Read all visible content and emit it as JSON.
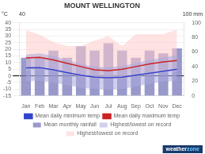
{
  "chart_data": {
    "type": "combo",
    "title": "MOUNT WELLINGTON",
    "categories": [
      "Jan",
      "Feb",
      "Mar",
      "Apr",
      "May",
      "Jun",
      "Jul",
      "Aug",
      "Sep",
      "Oct",
      "Nov",
      "Dec"
    ],
    "series": [
      {
        "name": "Mean daily minimum temp",
        "type": "line",
        "color": "#3344cc",
        "values": [
          6.0,
          6.2,
          4.5,
          2.5,
          0.5,
          -1.0,
          -1.5,
          -1.0,
          0.5,
          2.0,
          3.5,
          5.0
        ]
      },
      {
        "name": "Mean daily maximum temp",
        "type": "line",
        "color": "#cc2222",
        "values": [
          13.5,
          14.0,
          12.0,
          9.5,
          7.0,
          4.5,
          4.0,
          5.0,
          7.0,
          9.0,
          10.5,
          11.5
        ]
      },
      {
        "name": "Mean monthly rainfall",
        "type": "bar",
        "axis": "y2",
        "color": "#7777bb",
        "values": [
          52,
          52,
          62,
          52,
          68,
          62,
          72,
          62,
          52,
          62,
          58,
          65
        ]
      },
      {
        "name": "Highest/lowest on record",
        "type": "band",
        "color": "#aaaadd",
        "low": [
          -4.0,
          -3.5,
          -5.0,
          -7.0,
          -9.0,
          -10.0,
          -10.5,
          -10.0,
          -8.0,
          -6.0,
          -4.5,
          -3.5
        ],
        "high": [
          16.0,
          17.0,
          15.0,
          12.0,
          9.0,
          7.0,
          6.5,
          7.5,
          9.5,
          12.0,
          14.0,
          15.5
        ]
      },
      {
        "name": "Highest/lowest on record",
        "type": "band",
        "color": "#ffcccc",
        "low": [
          4.0,
          5.0,
          3.5,
          1.5,
          -0.5,
          -2.0,
          -2.5,
          -2.0,
          -0.5,
          1.0,
          2.5,
          3.5
        ],
        "high": [
          34.5,
          31.0,
          25.5,
          22.5,
          22.5,
          26.5,
          30.0,
          22.5,
          31.5,
          31.5,
          31.5,
          35.0
        ]
      }
    ],
    "ylim": [
      -15,
      40
    ],
    "yticks": [
      -15,
      -10,
      -5,
      0,
      5,
      10,
      15,
      20,
      25,
      30,
      35,
      40
    ],
    "y2lim": [
      0,
      100
    ],
    "y2ticks": [
      0,
      20,
      40,
      60,
      80,
      100
    ],
    "grid": true,
    "legend": "bottom",
    "reference_line": 0,
    "annotations": [
      "°C",
      "40",
      "100 mm",
      "weather",
      "zone"
    ]
  }
}
